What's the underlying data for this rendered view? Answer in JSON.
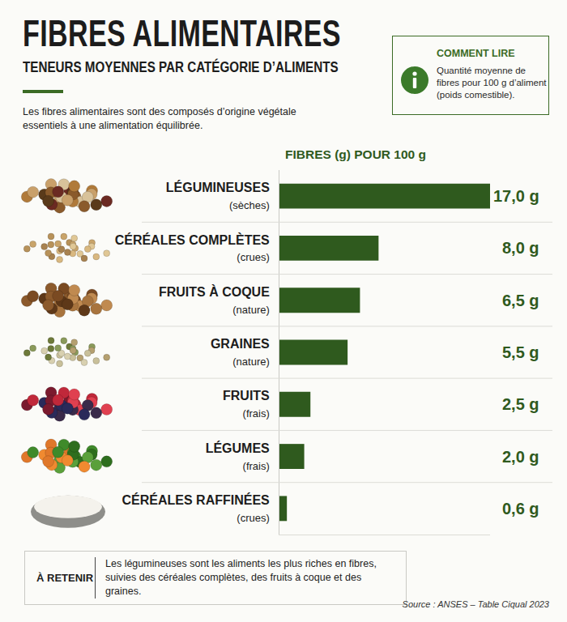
{
  "header": {
    "title": "FIBRES ALIMENTAIRES",
    "subtitle": "TENEURS MOYENNES PAR CATÉGORIE D’ALIMENTS",
    "intro": "Les fibres alimentaires sont des composés d’origine végétale essentiels à une alimentation équilibrée."
  },
  "info_box": {
    "title": "COMMENT LIRE",
    "text": "Quantité moyenne de fibres pour 100 g d’aliment (poids comestible)."
  },
  "chart_data": {
    "type": "bar",
    "orientation": "horizontal",
    "xlabel": "FIBRES (g) POUR 100 g",
    "categories": [
      "LÉGUMINEUSES",
      "CÉRÉALES COMPLÈTES",
      "FRUITS À COQUE",
      "GRAINES",
      "FRUITS",
      "LÉGUMES",
      "CÉRÉALES RAFFINÉES"
    ],
    "category_notes": [
      "(sèches)",
      "(crues)",
      "(nature)",
      "(nature)",
      "(frais)",
      "(frais)",
      "(crues)"
    ],
    "values": [
      17.0,
      8.0,
      6.5,
      5.5,
      2.5,
      2.0,
      0.6
    ],
    "value_labels": [
      "17,0 g",
      "8,0 g",
      "6,5 g",
      "5,5 g",
      "2,5 g",
      "2,0 g",
      "0,6 g"
    ],
    "color": "#2f5a1e",
    "xlim": [
      0,
      17
    ],
    "xticks": [],
    "tick_labels": "y",
    "data_labels": true,
    "grid": false
  },
  "takeaway": {
    "label": "À RETENIR",
    "text": "Les légumineuses sont les aliments les plus riches en fibres, suivies des céréales complètes, des fruits à coque et des graines."
  },
  "source": "Source : ANSES – Table Ciqual 2023"
}
